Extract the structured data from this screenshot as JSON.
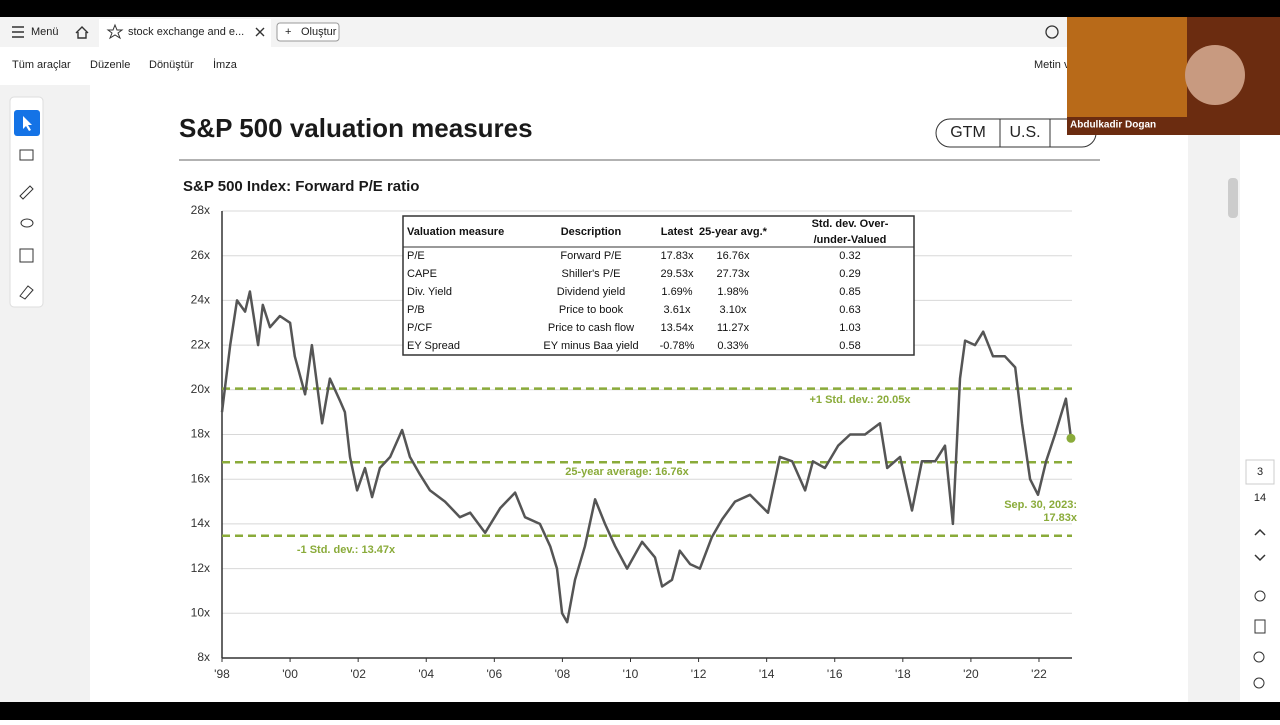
{
  "app": {
    "menu": "Menü",
    "tab": "stock exchange and e...",
    "create": "Oluştur",
    "tools": [
      "Tüm araçlar",
      "Düzenle",
      "Dönüştür",
      "İmza"
    ],
    "right_tool": "Metin v",
    "page_current": "3",
    "page_total": "14",
    "webcam_name": "Abdulkadir Dogan"
  },
  "page": {
    "title": "S&P 500 valuation measures",
    "tags": [
      "GTM",
      "U.S."
    ]
  },
  "chart_data": {
    "type": "line",
    "title": "S&P 500 Index: Forward P/E ratio",
    "color": "#555555",
    "x": [
      1998.0,
      1998.24,
      1998.44,
      1998.68,
      1998.82,
      1999.06,
      1999.2,
      1999.41,
      1999.7,
      2000.0,
      2000.14,
      2000.44,
      2000.64,
      2000.94,
      2001.17,
      2001.47,
      2001.61,
      2001.76,
      2001.97,
      2002.2,
      2002.41,
      2002.64,
      2002.94,
      2003.29,
      2003.52,
      2003.82,
      2004.11,
      2004.55,
      2004.99,
      2005.29,
      2005.73,
      2006.17,
      2006.61,
      2006.9,
      2007.34,
      2007.64,
      2007.84,
      2007.99,
      2008.14,
      2008.37,
      2008.66,
      2008.96,
      2009.25,
      2009.55,
      2009.9,
      2010.34,
      2010.72,
      2010.93,
      2011.22,
      2011.45,
      2011.75,
      2012.04,
      2012.39,
      2012.69,
      2013.07,
      2013.51,
      2014.04,
      2014.39,
      2014.75,
      2015.13,
      2015.36,
      2015.71,
      2016.1,
      2016.45,
      2016.89,
      2017.33,
      2017.54,
      2017.92,
      2018.27,
      2018.56,
      2018.95,
      2019.24,
      2019.47,
      2019.68,
      2019.83,
      2020.12,
      2020.36,
      2020.65,
      2021.0,
      2021.3,
      2021.5,
      2021.74,
      2021.97,
      2022.21,
      2022.47,
      2022.79,
      2022.94
    ],
    "values": [
      19.0,
      22.0,
      24.0,
      23.5,
      24.4,
      22.0,
      23.8,
      22.8,
      23.3,
      23.0,
      21.5,
      19.8,
      22.0,
      18.5,
      20.5,
      19.5,
      19.0,
      17.0,
      15.5,
      16.5,
      15.2,
      16.5,
      17.0,
      18.2,
      17.0,
      16.2,
      15.5,
      15.0,
      14.3,
      14.5,
      13.6,
      14.7,
      15.4,
      14.3,
      14.0,
      13.0,
      12.0,
      10.0,
      9.6,
      11.5,
      13.0,
      15.1,
      14.0,
      13.0,
      12.0,
      13.2,
      12.5,
      11.2,
      11.5,
      12.8,
      12.2,
      12.0,
      13.4,
      14.2,
      15.0,
      15.3,
      14.5,
      17.0,
      16.8,
      15.5,
      16.8,
      16.5,
      17.5,
      18.0,
      18.0,
      18.5,
      16.5,
      17.0,
      14.6,
      16.8,
      16.8,
      17.5,
      14.0,
      20.5,
      22.2,
      22.0,
      22.6,
      21.5,
      21.5,
      21.0,
      18.5,
      16.0,
      15.3,
      16.8,
      18.0,
      19.6,
      17.83
    ],
    "xlim": [
      1998,
      2022.97
    ],
    "ylim": [
      8,
      28
    ],
    "xticks": [
      {
        "value": 1998,
        "label": "'98"
      },
      {
        "value": 2000,
        "label": "'00"
      },
      {
        "value": 2002,
        "label": "'02"
      },
      {
        "value": 2004,
        "label": "'04"
      },
      {
        "value": 2006,
        "label": "'06"
      },
      {
        "value": 2008,
        "label": "'08"
      },
      {
        "value": 2010,
        "label": "'10"
      },
      {
        "value": 2012,
        "label": "'12"
      },
      {
        "value": 2014,
        "label": "'14"
      },
      {
        "value": 2016,
        "label": "'16"
      },
      {
        "value": 2018,
        "label": "'18"
      },
      {
        "value": 2020,
        "label": "'20"
      },
      {
        "value": 2022,
        "label": "'22"
      }
    ],
    "yticks": [
      {
        "value": 8,
        "label": "8x"
      },
      {
        "value": 10,
        "label": "10x"
      },
      {
        "value": 12,
        "label": "12x"
      },
      {
        "value": 14,
        "label": "14x"
      },
      {
        "value": 16,
        "label": "16x"
      },
      {
        "value": 18,
        "label": "18x"
      },
      {
        "value": 20,
        "label": "20x"
      },
      {
        "value": 22,
        "label": "22x"
      },
      {
        "value": 24,
        "label": "24x"
      },
      {
        "value": 26,
        "label": "26x"
      },
      {
        "value": 28,
        "label": "28x"
      }
    ],
    "grid": true,
    "reference_lines": [
      {
        "value": 20.05,
        "label": "+1 Std. dev.: 20.05x",
        "color": "#8aab3a"
      },
      {
        "value": 16.76,
        "label": "25-year average: 16.76x",
        "color": "#8aab3a"
      },
      {
        "value": 13.47,
        "label": "-1 Std. dev.: 13.47x",
        "color": "#8aab3a"
      }
    ],
    "annotation": [
      "Sep. 30, 2023:",
      "17.83x"
    ],
    "table": {
      "columns": [
        "Valuation measure",
        "Description",
        "Latest",
        "25-year avg.*",
        [
          "Std. dev. Over-",
          "/under-Valued"
        ]
      ],
      "rows": [
        [
          "P/E",
          "Forward P/E",
          "17.83x",
          "16.76x",
          "0.32"
        ],
        [
          "CAPE",
          "Shiller's P/E",
          "29.53x",
          "27.73x",
          "0.29"
        ],
        [
          "Div. Yield",
          "Dividend yield",
          "1.69%",
          "1.98%",
          "0.85"
        ],
        [
          "P/B",
          "Price to book",
          "3.61x",
          "3.10x",
          "0.63"
        ],
        [
          "P/CF",
          "Price to cash flow",
          "13.54x",
          "11.27x",
          "1.03"
        ],
        [
          "EY Spread",
          "EY minus Baa yield",
          "-0.78%",
          "0.33%",
          "0.58"
        ]
      ]
    }
  }
}
